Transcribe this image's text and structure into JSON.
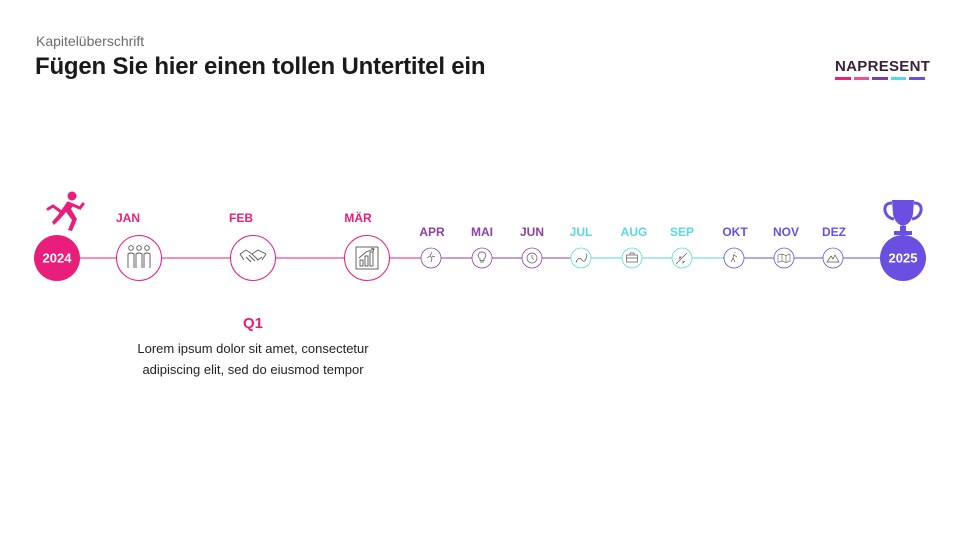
{
  "header": {
    "chapter": "Kapitelüberschrift",
    "title": "Fügen Sie hier einen tollen Untertitel ein"
  },
  "logo": {
    "text": "NAPRESENT",
    "bar_colors": [
      "#e91e7a",
      "#e8558f",
      "#7b3fa0",
      "#5ad6e6",
      "#6a4fe0"
    ]
  },
  "timeline": {
    "start_year": "2024",
    "end_year": "2025",
    "start_icon": "running-person-icon",
    "end_icon": "trophy-icon",
    "months": [
      {
        "label": "JAN",
        "icon": "team-icon",
        "color": "#e91e7a"
      },
      {
        "label": "FEB",
        "icon": "handshake-icon",
        "color": "#e91e7a"
      },
      {
        "label": "MÄR",
        "icon": "growth-chart-icon",
        "color": "#e91e7a"
      },
      {
        "label": "APR",
        "icon": "runner-icon",
        "color": "#8e3fa3"
      },
      {
        "label": "MAI",
        "icon": "bulb-icon",
        "color": "#8e3fa3"
      },
      {
        "label": "JUN",
        "icon": "clock-icon",
        "color": "#8e3fa3"
      },
      {
        "label": "JUL",
        "icon": "route-icon",
        "color": "#5ad6e6"
      },
      {
        "label": "AUG",
        "icon": "briefcase-icon",
        "color": "#5ad6e6"
      },
      {
        "label": "SEP",
        "icon": "rocket-icon",
        "color": "#5ad6e6"
      },
      {
        "label": "OKT",
        "icon": "walker-icon",
        "color": "#6a4fe0"
      },
      {
        "label": "NOV",
        "icon": "map-icon",
        "color": "#6a4fe0"
      },
      {
        "label": "DEZ",
        "icon": "mountain-icon",
        "color": "#6a4fe0"
      }
    ],
    "quarter": {
      "title": "Q1",
      "text": "Lorem ipsum dolor sit amet, consectetur adipiscing elit, sed do eiusmod tempor"
    }
  },
  "colors": {
    "pink": "#e91e7a",
    "purple": "#8e3fa3",
    "cyan": "#5ad6e6",
    "violet": "#6a4fe0"
  }
}
